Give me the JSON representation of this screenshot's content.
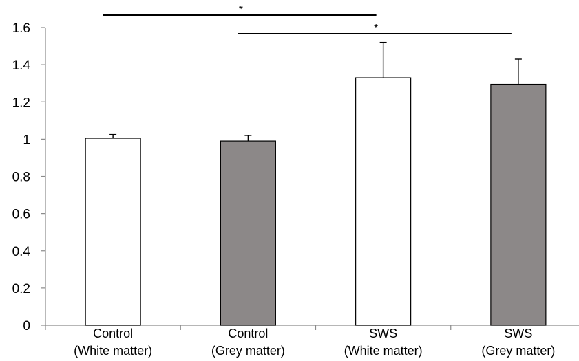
{
  "chart_data": {
    "type": "bar",
    "title": "",
    "xlabel": "",
    "ylabel": "",
    "ylim": [
      0,
      1.6
    ],
    "yticks": [
      "0",
      "0.2",
      "0.4",
      "0.6",
      "0.8",
      "1",
      "1.2",
      "1.4",
      "1.6"
    ],
    "grid": false,
    "categories": [
      {
        "line1": "Control",
        "line2": "(White matter)"
      },
      {
        "line1": "Control",
        "line2": "(Grey matter)"
      },
      {
        "line1": "SWS",
        "line2": "(White matter)"
      },
      {
        "line1": "SWS",
        "line2": "(Grey matter)"
      }
    ],
    "values": [
      1.005,
      0.99,
      1.33,
      1.295
    ],
    "errors": [
      0.02,
      0.03,
      0.19,
      0.135
    ],
    "bar_colors": [
      "#ffffff",
      "#8c8888",
      "#ffffff",
      "#8c8888"
    ],
    "significance": [
      {
        "from": 0,
        "to": 2,
        "label": "*"
      },
      {
        "from": 1,
        "to": 3,
        "label": "*"
      }
    ]
  }
}
